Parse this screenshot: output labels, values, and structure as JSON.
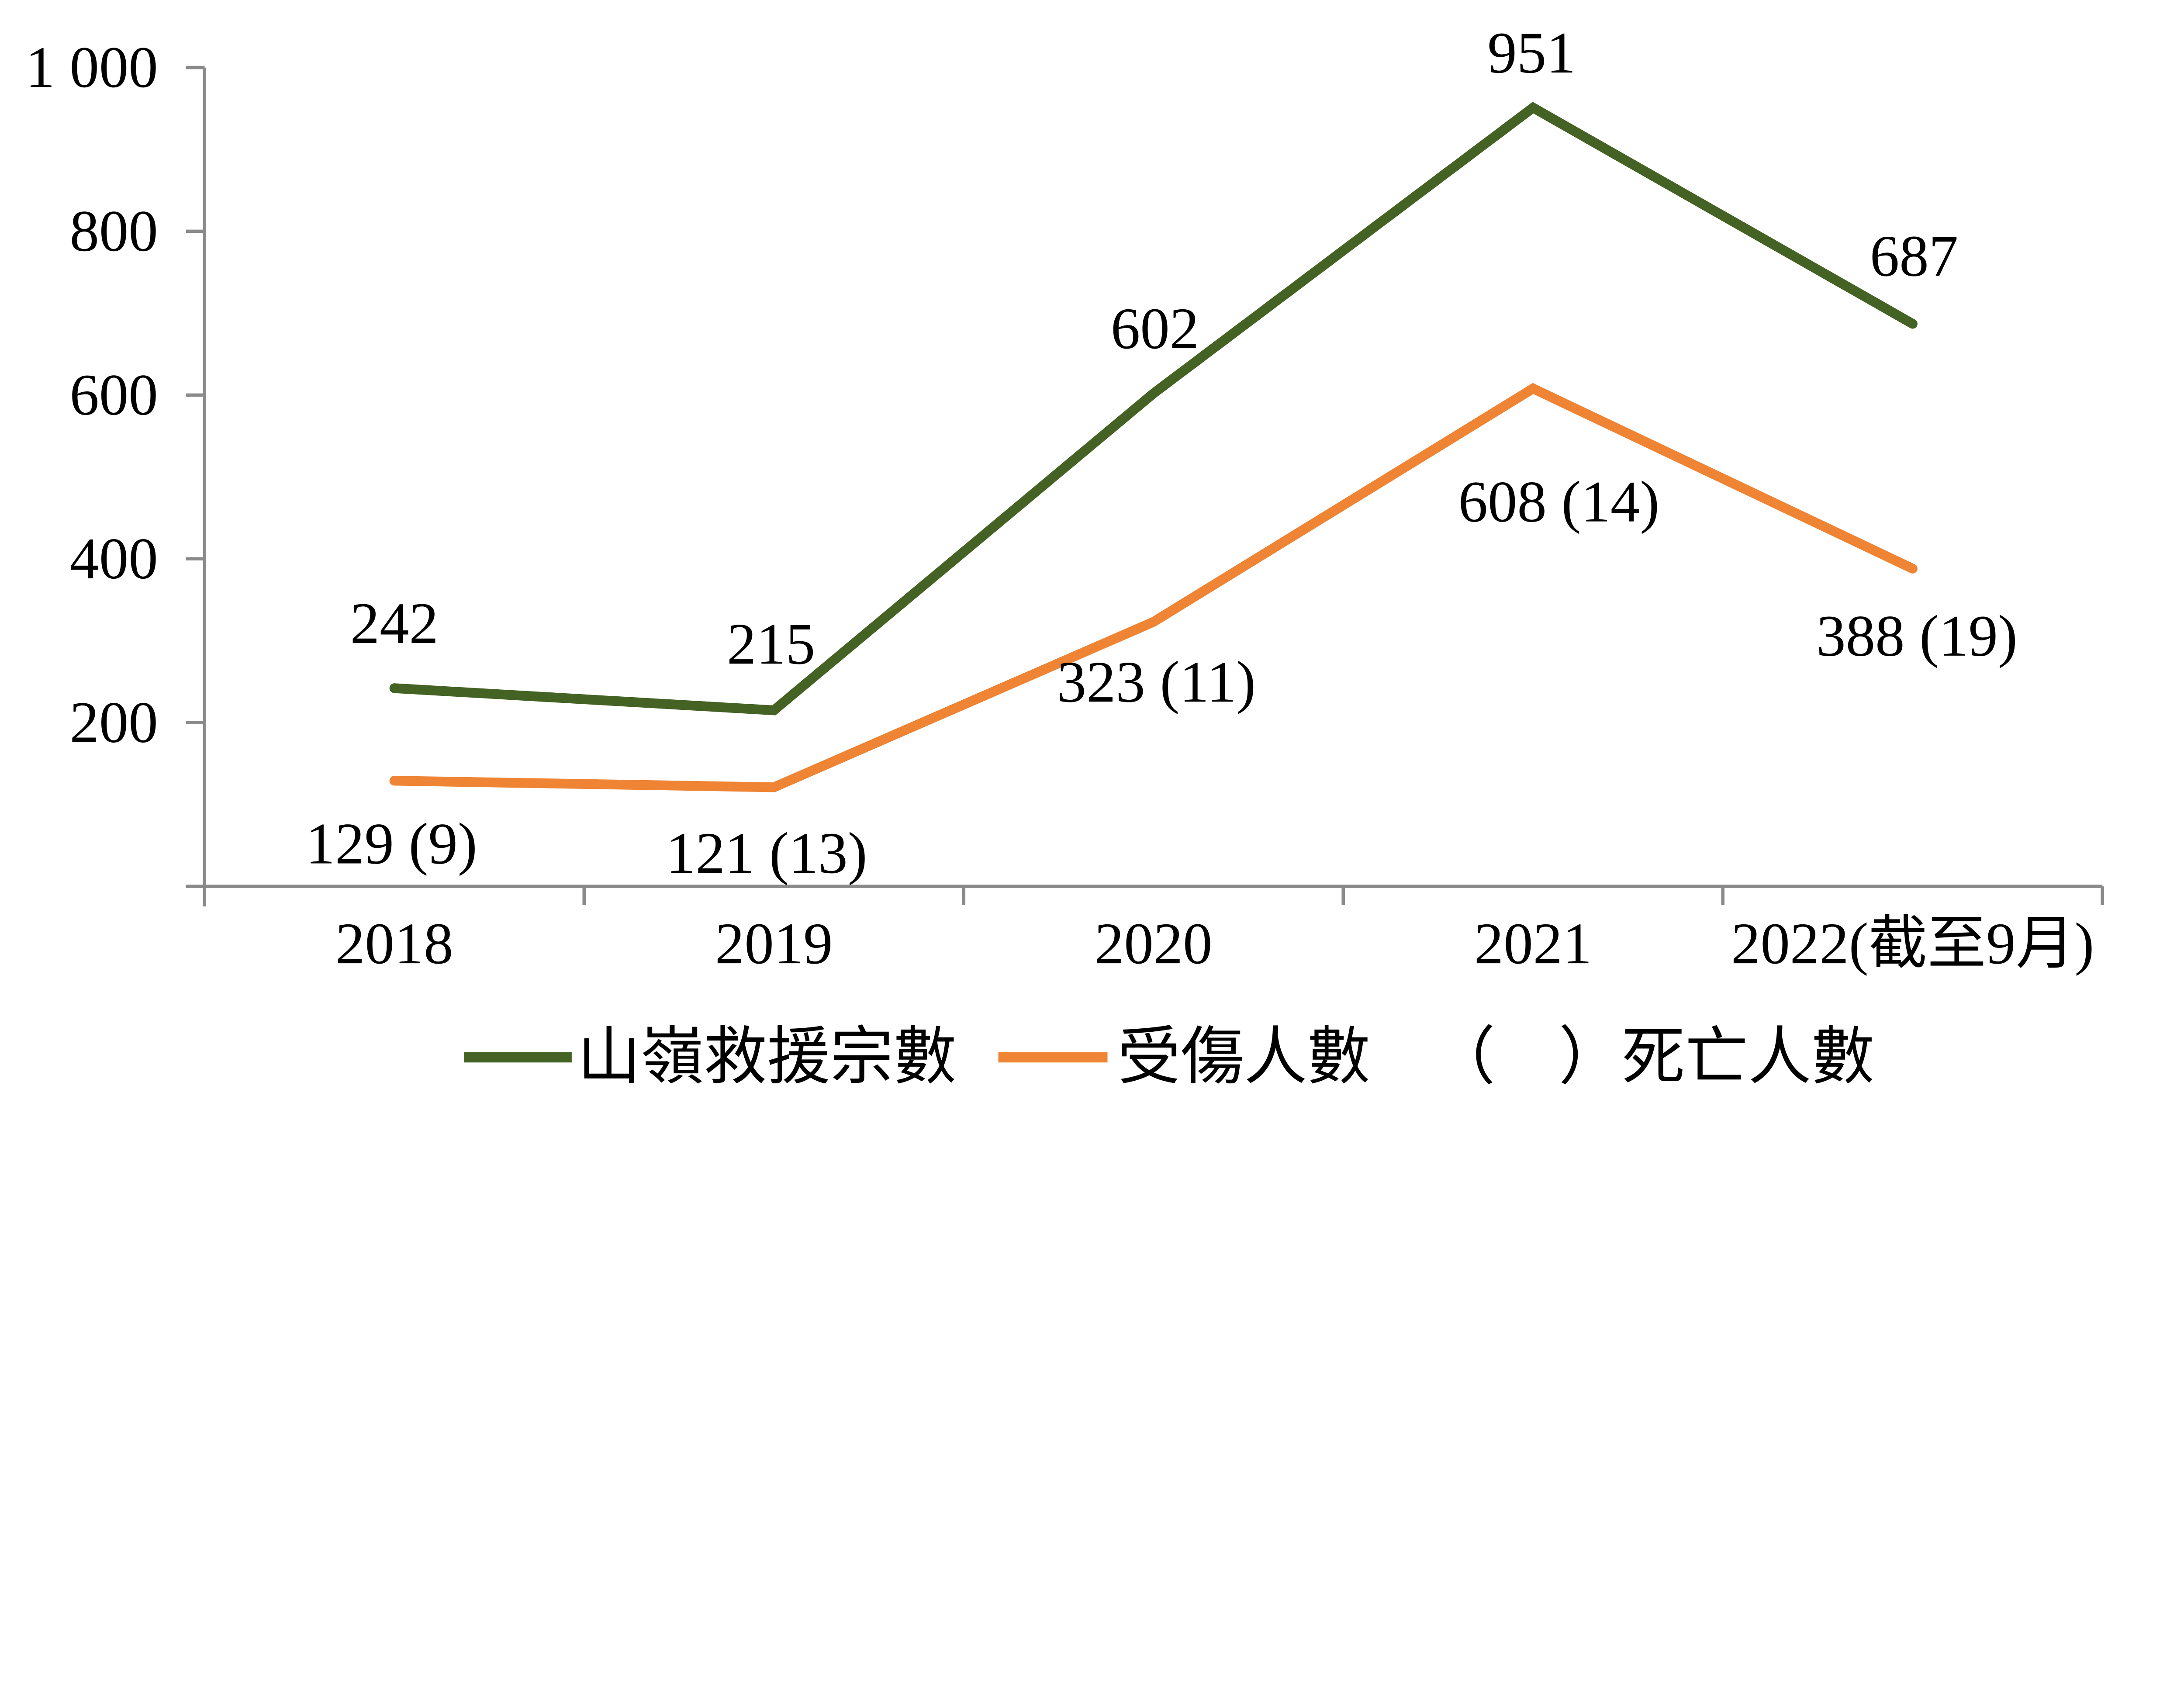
{
  "chart_data": {
    "type": "line",
    "categories": [
      "2018",
      "2019",
      "2020",
      "2021",
      "2022(截至9月)"
    ],
    "series": [
      {
        "name": "山嶺救援宗數",
        "color": "#446224",
        "values": [
          242,
          215,
          602,
          951,
          687
        ],
        "point_labels": [
          "242",
          "215",
          "602",
          "951",
          "687"
        ]
      },
      {
        "name": "受傷人數",
        "color": "#ee8434",
        "values": [
          129,
          121,
          323,
          608,
          388
        ],
        "point_labels": [
          "129 (9)",
          "121 (13)",
          "323 (11)",
          "608 (14)",
          "388 (19)"
        ]
      }
    ],
    "legend": {
      "items": [
        "山嶺救援宗數",
        "受傷人數"
      ],
      "note": "（　）死亡人數",
      "position": "bottom"
    },
    "title": "",
    "xlabel": "",
    "ylabel": "",
    "ylim": [
      0,
      1000
    ],
    "yticks": [
      0,
      200,
      400,
      600,
      800,
      1000
    ],
    "ytick_labels": [
      "",
      "200",
      "400",
      "600",
      "800",
      "1 000"
    ],
    "grid": false,
    "axis_color": "#8a8a8a",
    "text_color": "#000000"
  }
}
